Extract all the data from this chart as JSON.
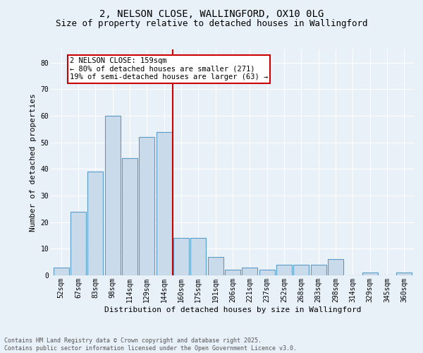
{
  "title1": "2, NELSON CLOSE, WALLINGFORD, OX10 0LG",
  "title2": "Size of property relative to detached houses in Wallingford",
  "xlabel": "Distribution of detached houses by size in Wallingford",
  "ylabel": "Number of detached properties",
  "bin_labels": [
    "52sqm",
    "67sqm",
    "83sqm",
    "98sqm",
    "114sqm",
    "129sqm",
    "144sqm",
    "160sqm",
    "175sqm",
    "191sqm",
    "206sqm",
    "221sqm",
    "237sqm",
    "252sqm",
    "268sqm",
    "283sqm",
    "298sqm",
    "314sqm",
    "329sqm",
    "345sqm",
    "360sqm"
  ],
  "bar_heights": [
    3,
    24,
    39,
    60,
    44,
    52,
    54,
    14,
    14,
    7,
    2,
    3,
    2,
    4,
    4,
    4,
    6,
    0,
    1,
    0,
    1
  ],
  "bar_color": "#c9daea",
  "bar_edge_color": "#5a9cc5",
  "vline_x_idx": 7,
  "vline_color": "#cc0000",
  "annotation_text": "2 NELSON CLOSE: 159sqm\n← 80% of detached houses are smaller (271)\n19% of semi-detached houses are larger (63) →",
  "annotation_box_color": "#ffffff",
  "annotation_box_edge": "#cc0000",
  "ylim": [
    0,
    85
  ],
  "yticks": [
    0,
    10,
    20,
    30,
    40,
    50,
    60,
    70,
    80
  ],
  "background_color": "#e8f0f8",
  "grid_color": "#ffffff",
  "footer_text": "Contains HM Land Registry data © Crown copyright and database right 2025.\nContains public sector information licensed under the Open Government Licence v3.0.",
  "title_fontsize": 10,
  "subtitle_fontsize": 9,
  "axis_label_fontsize": 8,
  "tick_fontsize": 7,
  "annotation_fontsize": 7.5,
  "footer_fontsize": 6
}
